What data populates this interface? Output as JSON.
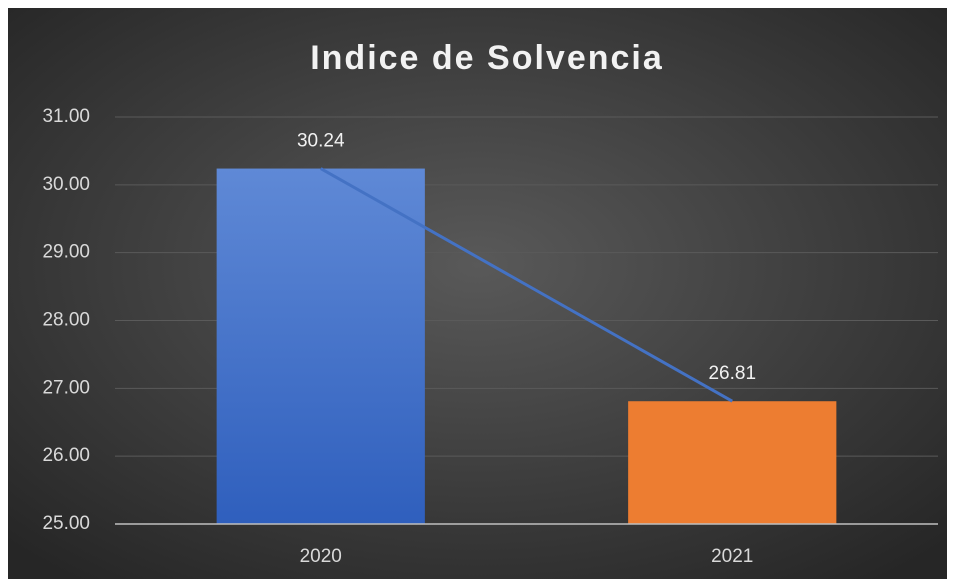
{
  "chart_data": {
    "type": "bar",
    "title": "Indice de Solvencia",
    "categories": [
      "2020",
      "2021"
    ],
    "values": [
      30.24,
      26.81
    ],
    "colors": [
      "#4472c4",
      "#ed7d31"
    ],
    "trend_line_color": "#4472c4",
    "ylim": [
      25,
      31
    ],
    "yticks": [
      {
        "value": 25,
        "label": "25.00"
      },
      {
        "value": 26,
        "label": "26.00"
      },
      {
        "value": 27,
        "label": "27.00"
      },
      {
        "value": 28,
        "label": "28.00"
      },
      {
        "value": 29,
        "label": "29.00"
      },
      {
        "value": 30,
        "label": "30.00"
      },
      {
        "value": 31,
        "label": "31.00"
      }
    ],
    "grid": true
  }
}
